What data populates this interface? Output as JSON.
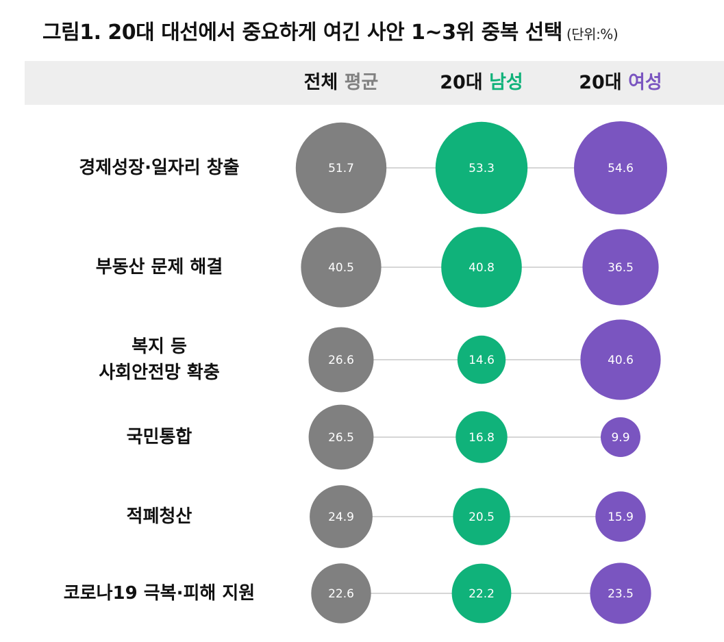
{
  "title": "그림1. 20대 대선에서 중요하게 여긴 사안 1~3위 중복 선택",
  "unit": "(단위:%)",
  "colors": {
    "all": "#808080",
    "male": "#10b27a",
    "female": "#7a55c0",
    "line": "#c8c8c8"
  },
  "chart_data": {
    "type": "bubble",
    "title": "그림1. 20대 대선에서 중요하게 여긴 사안 1~3위 중복 선택",
    "unit": "%",
    "columns": [
      {
        "key": "all",
        "prefix": "전체 ",
        "highlight": "평균"
      },
      {
        "key": "male",
        "prefix": "20대 ",
        "highlight": "남성"
      },
      {
        "key": "female",
        "prefix": "20대 ",
        "highlight": "여성"
      }
    ],
    "categories": [
      "경제성장·일자리 창출",
      "부동산 문제 해결",
      "복지 등\n사회안전망 확충",
      "국민통합",
      "적폐청산",
      "코로나19 극복·피해 지원"
    ],
    "series": [
      {
        "name": "전체 평균",
        "values": [
          51.7,
          40.5,
          26.6,
          26.5,
          24.9,
          22.6
        ]
      },
      {
        "name": "20대 남성",
        "values": [
          53.3,
          40.8,
          14.6,
          16.8,
          20.5,
          22.2
        ]
      },
      {
        "name": "20대 여성",
        "values": [
          54.6,
          36.5,
          40.6,
          9.9,
          15.9,
          23.5
        ]
      }
    ]
  }
}
